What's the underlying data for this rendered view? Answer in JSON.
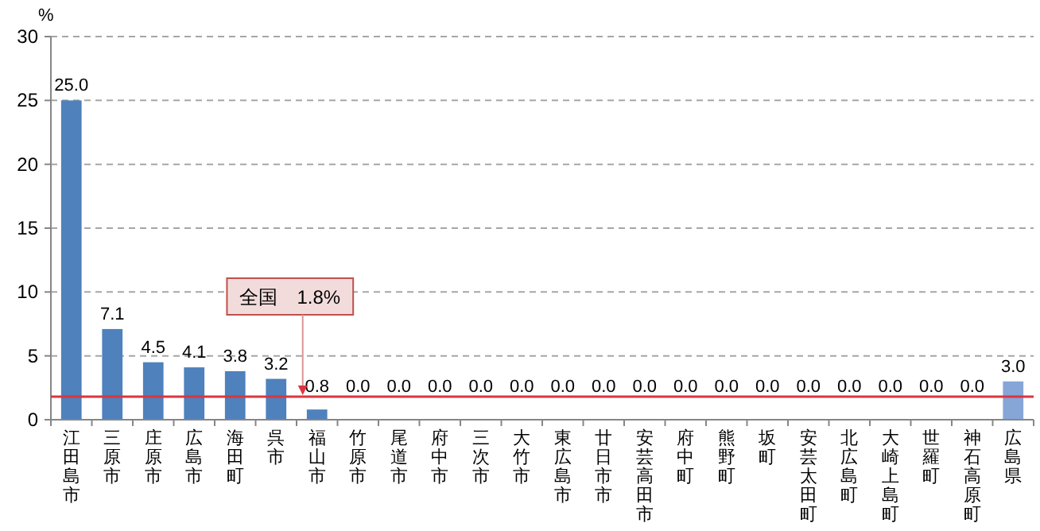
{
  "chart_data": {
    "type": "bar",
    "ylabel": "%",
    "categories": [
      "江田島市",
      "三原市",
      "庄原市",
      "広島市",
      "海田町",
      "呉市",
      "福山市",
      "竹原市",
      "尾道市",
      "府中市",
      "三次市",
      "大竹市",
      "東広島市",
      "廿日市市",
      "安芸高田市",
      "府中町",
      "熊野町",
      "坂町",
      "安芸太田町",
      "北広島町",
      "大崎上島町",
      "世羅町",
      "神石高原町",
      "広島県"
    ],
    "values": [
      25.0,
      7.1,
      4.5,
      4.1,
      3.8,
      3.2,
      0.8,
      0,
      0,
      0,
      0,
      0,
      0,
      0,
      0,
      0,
      0,
      0,
      0,
      0,
      0,
      0,
      0,
      3.0
    ],
    "value_labels": [
      "25.0",
      "7.1",
      "4.5",
      "4.1",
      "3.8",
      "3.2",
      "0.8",
      "0.0",
      "0.0",
      "0.0",
      "0.0",
      "0.0",
      "0.0",
      "0.0",
      "0.0",
      "0.0",
      "0.0",
      "0.0",
      "0.0",
      "0.0",
      "0.0",
      "0.0",
      "0.0",
      "3.0"
    ],
    "colors": [
      "#4f81bd",
      "#4f81bd",
      "#4f81bd",
      "#4f81bd",
      "#4f81bd",
      "#4f81bd",
      "#4f81bd",
      "#4f81bd",
      "#4f81bd",
      "#4f81bd",
      "#4f81bd",
      "#4f81bd",
      "#4f81bd",
      "#4f81bd",
      "#4f81bd",
      "#4f81bd",
      "#4f81bd",
      "#4f81bd",
      "#4f81bd",
      "#4f81bd",
      "#4f81bd",
      "#4f81bd",
      "#4f81bd",
      "#86a6d8"
    ],
    "ylim": [
      0,
      30
    ],
    "yticks": [
      0,
      5,
      10,
      15,
      20,
      25,
      30
    ],
    "grid": "y",
    "ref_lines": [
      {
        "axis": "y",
        "value": 1.8,
        "label": "全国　1.8%",
        "color": "#d9363e"
      }
    ]
  }
}
